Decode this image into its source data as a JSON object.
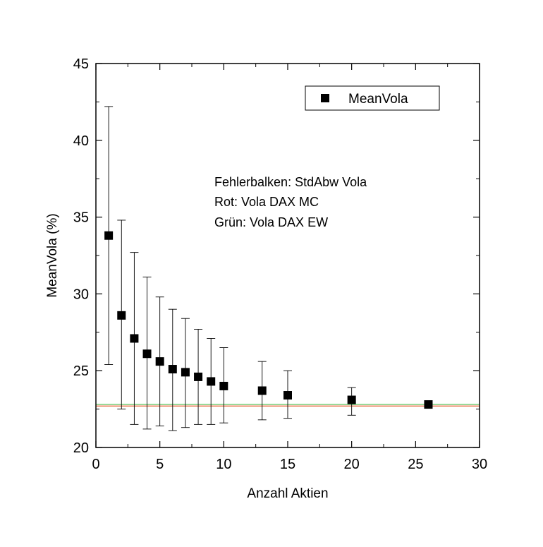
{
  "chart_data": {
    "type": "scatter",
    "title": "",
    "xlabel": "Anzahl Aktien",
    "ylabel": "MeanVola (%)",
    "xlim": [
      0,
      30
    ],
    "ylim": [
      20,
      45
    ],
    "x_ticks": [
      0,
      5,
      10,
      15,
      20,
      25,
      30
    ],
    "y_ticks": [
      20,
      25,
      30,
      35,
      40,
      45
    ],
    "grid": false,
    "legend": {
      "position": "top-right",
      "entries": [
        "MeanVola"
      ]
    },
    "annotations": [
      "Fehlerbalken: StdAbw Vola",
      "Rot: Vola DAX MC",
      "Grün: Vola DAX EW"
    ],
    "series": [
      {
        "name": "MeanVola",
        "marker": "square",
        "color": "#000000",
        "points": [
          {
            "x": 1,
            "y": 33.8,
            "err_low": 25.4,
            "err_high": 42.2
          },
          {
            "x": 2,
            "y": 28.6,
            "err_low": 22.5,
            "err_high": 34.8
          },
          {
            "x": 3,
            "y": 27.1,
            "err_low": 21.5,
            "err_high": 32.7
          },
          {
            "x": 4,
            "y": 26.1,
            "err_low": 21.2,
            "err_high": 31.1
          },
          {
            "x": 5,
            "y": 25.6,
            "err_low": 21.4,
            "err_high": 29.8
          },
          {
            "x": 6,
            "y": 25.1,
            "err_low": 21.1,
            "err_high": 29.0
          },
          {
            "x": 7,
            "y": 24.9,
            "err_low": 21.3,
            "err_high": 28.4
          },
          {
            "x": 8,
            "y": 24.6,
            "err_low": 21.5,
            "err_high": 27.7
          },
          {
            "x": 9,
            "y": 24.3,
            "err_low": 21.5,
            "err_high": 27.1
          },
          {
            "x": 10,
            "y": 24.0,
            "err_low": 21.6,
            "err_high": 26.5
          },
          {
            "x": 13,
            "y": 23.7,
            "err_low": 21.8,
            "err_high": 25.6
          },
          {
            "x": 15,
            "y": 23.4,
            "err_low": 21.9,
            "err_high": 25.0
          },
          {
            "x": 20,
            "y": 23.1,
            "err_low": 22.1,
            "err_high": 23.9
          },
          {
            "x": 26,
            "y": 22.8,
            "err_low": 22.7,
            "err_high": 22.9
          }
        ]
      }
    ],
    "reference_lines": [
      {
        "y": 22.7,
        "color": "#e06030"
      },
      {
        "y": 22.8,
        "color": "#6dc96d"
      }
    ]
  }
}
